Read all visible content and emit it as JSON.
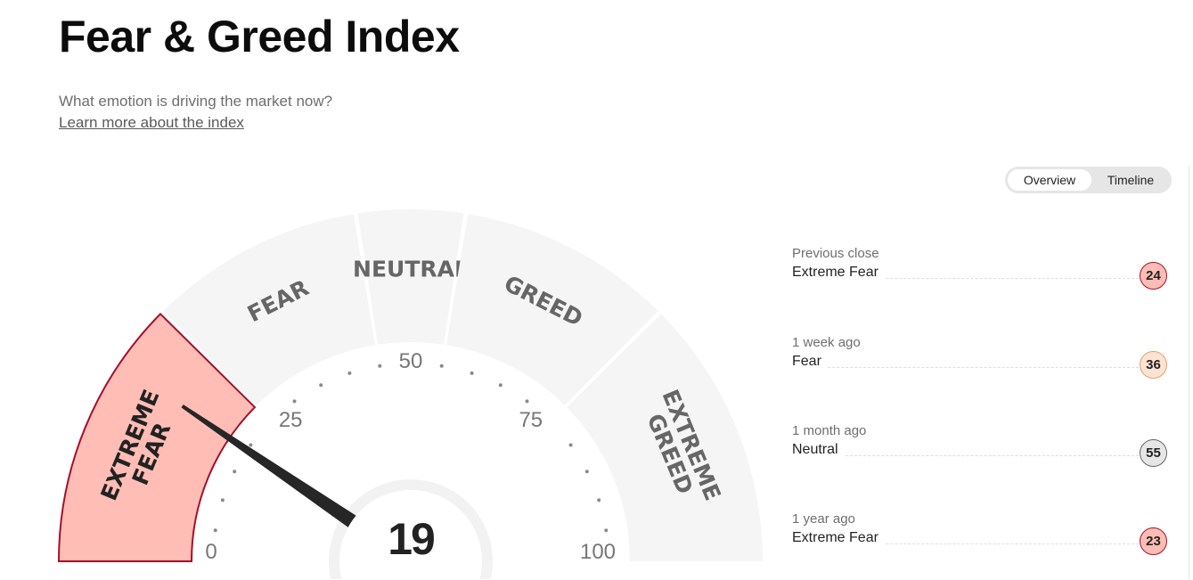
{
  "header": {
    "title": "Fear & Greed Index",
    "subtitle": "What emotion is driving the market now?",
    "learn_more": "Learn more about the index"
  },
  "toggle": {
    "overview": "Overview",
    "timeline": "Timeline",
    "active": "Overview"
  },
  "chart_data": {
    "type": "gauge",
    "value": 19,
    "value_label": "19",
    "range": [
      0,
      100
    ],
    "tick_labels": [
      "0",
      "25",
      "50",
      "75",
      "100"
    ],
    "segments": [
      {
        "label": [
          "EXTREME",
          "FEAR"
        ],
        "from": 0,
        "to": 25,
        "active": true
      },
      {
        "label": [
          "FEAR"
        ],
        "from": 25,
        "to": 45,
        "active": false
      },
      {
        "label": [
          "NEUTRAL"
        ],
        "from": 45,
        "to": 55,
        "active": false
      },
      {
        "label": [
          "GREED"
        ],
        "from": 55,
        "to": 75,
        "active": false
      },
      {
        "label": [
          "EXTREME",
          "GREED"
        ],
        "from": 75,
        "to": 100,
        "active": false
      }
    ],
    "colors": {
      "active_fill": "#ffbdb5",
      "active_stroke": "#a3102c",
      "inactive_fill": "#f5f5f5",
      "label": "#666666",
      "active_label": "#222222",
      "needle": "#262626"
    }
  },
  "history": [
    {
      "label": "Previous close",
      "rating": "Extreme Fear",
      "value": "24",
      "fill": "#ffbdb5",
      "border": "#a3102c"
    },
    {
      "label": "1 week ago",
      "rating": "Fear",
      "value": "36",
      "fill": "#fde3d2",
      "border": "#e0a06a"
    },
    {
      "label": "1 month ago",
      "rating": "Neutral",
      "value": "55",
      "fill": "#e6e6e6",
      "border": "#666666"
    },
    {
      "label": "1 year ago",
      "rating": "Extreme Fear",
      "value": "23",
      "fill": "#ffbdb5",
      "border": "#a3102c"
    }
  ]
}
